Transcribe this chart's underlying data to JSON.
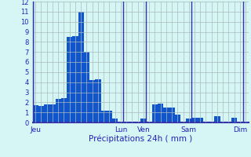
{
  "bar_values": [
    1.7,
    1.6,
    1.8,
    1.8,
    2.3,
    2.4,
    8.5,
    8.6,
    11.0,
    7.0,
    4.2,
    4.3,
    1.2,
    1.2,
    0.4,
    0.0,
    0.0,
    0.0,
    0.0,
    0.4,
    0.0,
    1.8,
    1.9,
    1.5,
    1.5,
    0.8,
    0.0,
    0.4,
    0.5,
    0.5,
    0.0,
    0.0,
    0.6,
    0.0,
    0.0,
    0.5,
    0.0,
    0.0
  ],
  "day_labels": [
    "Jeu",
    "Lun",
    "Ven",
    "Sam",
    "Dim"
  ],
  "day_tick_positions": [
    0,
    15,
    19,
    27,
    36
  ],
  "day_line_positions": [
    -0.5,
    15.5,
    19.5,
    27.5,
    36.5
  ],
  "xlabel": "Précipitations 24h ( mm )",
  "ylim": [
    0,
    12
  ],
  "yticks": [
    0,
    1,
    2,
    3,
    4,
    5,
    6,
    7,
    8,
    9,
    10,
    11,
    12
  ],
  "bar_color": "#1155cc",
  "bg_color": "#d6f5f5",
  "grid_color": "#aabcbc",
  "axis_color": "#3333aa",
  "text_color": "#2222bb",
  "bar_width": 1.0
}
